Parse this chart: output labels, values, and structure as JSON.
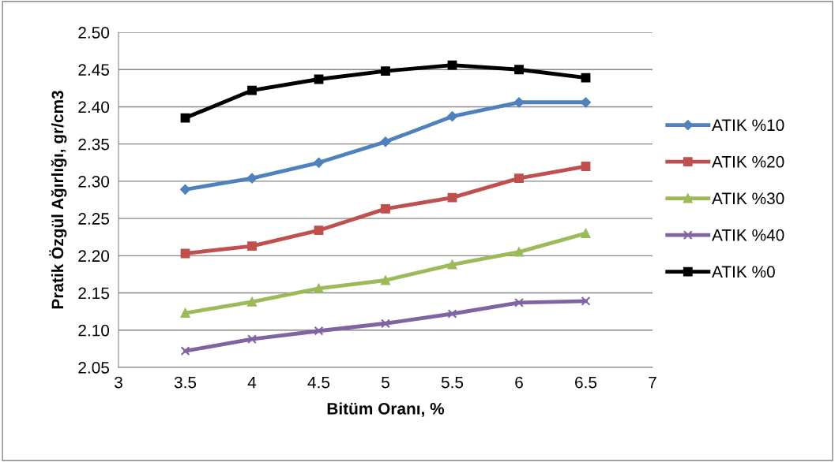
{
  "chart_data": {
    "type": "line",
    "xlabel": "Bitüm Oranı, %",
    "ylabel": "Pratik Özgül Ağırlığı, gr/cm3",
    "x": [
      3.5,
      4,
      4.5,
      5,
      5.5,
      6,
      6.5
    ],
    "series": [
      {
        "name": "ATIK %10",
        "color": "#4f81bd",
        "marker": "diamond",
        "values": [
          2.289,
          2.304,
          2.325,
          2.353,
          2.387,
          2.406,
          2.406
        ]
      },
      {
        "name": "ATIK %20",
        "color": "#c0504d",
        "marker": "square",
        "values": [
          2.203,
          2.213,
          2.234,
          2.263,
          2.278,
          2.304,
          2.32
        ]
      },
      {
        "name": "ATIK %30",
        "color": "#9bbb59",
        "marker": "triangle",
        "values": [
          2.123,
          2.138,
          2.156,
          2.167,
          2.188,
          2.205,
          2.23
        ]
      },
      {
        "name": "ATIK %40",
        "color": "#8064a2",
        "marker": "cross",
        "values": [
          2.072,
          2.088,
          2.099,
          2.109,
          2.122,
          2.137,
          2.139
        ]
      },
      {
        "name": "ATIK %0",
        "color": "#000000",
        "marker": "square",
        "values": [
          2.385,
          2.422,
          2.437,
          2.448,
          2.456,
          2.45,
          2.439
        ]
      }
    ],
    "xlim": [
      3,
      7
    ],
    "xticks": [
      3,
      3.5,
      4,
      4.5,
      5,
      5.5,
      6,
      6.5,
      7
    ],
    "ylim": [
      2.05,
      2.5
    ],
    "yticks": [
      2.05,
      {
        "value": 2.1,
        "label": "2.10"
      },
      2.15,
      {
        "value": 2.2,
        "label": "2.20"
      },
      2.25,
      {
        "value": 2.3,
        "label": "2.30"
      },
      2.35,
      {
        "value": 2.4,
        "label": "2.40"
      },
      2.45,
      {
        "value": 2.5,
        "label": "2.50"
      }
    ],
    "grid": "y",
    "legend": "right",
    "line_style": "solid"
  }
}
